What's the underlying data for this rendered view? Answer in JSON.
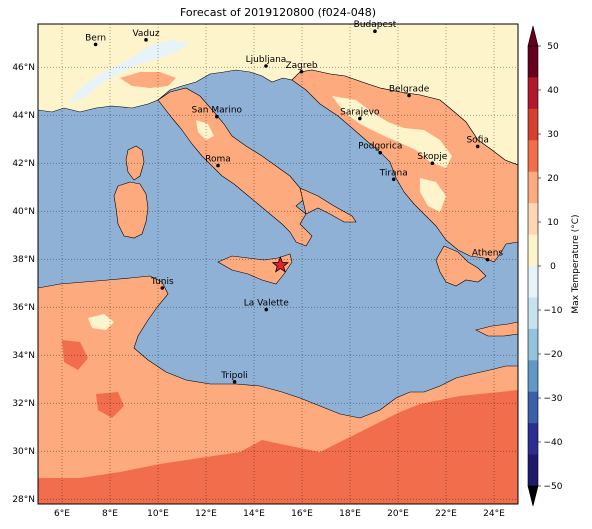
{
  "title": "Forecast of 2019120800 (f024-048)",
  "map": {
    "lon_range": [
      5,
      25
    ],
    "lat_range": [
      27.8,
      47.8
    ],
    "lon_ticks": [
      "6°E",
      "8°E",
      "10°E",
      "12°E",
      "14°E",
      "16°E",
      "18°E",
      "20°E",
      "22°E",
      "24°E"
    ],
    "lat_ticks": [
      "28°N",
      "30°N",
      "32°N",
      "34°N",
      "36°N",
      "38°N",
      "40°N",
      "42°N",
      "44°N",
      "46°N"
    ],
    "grid": true,
    "sea_color": "#8fb1d6",
    "land_colors": {
      "warm": "#fcaa7e",
      "hot": "#f26d4b",
      "mild": "#fef4cc",
      "cool": "#e6f4f9"
    },
    "cities": [
      {
        "name": "Bern",
        "lon": 7.4,
        "lat": 46.95
      },
      {
        "name": "Vaduz",
        "lon": 9.5,
        "lat": 47.14
      },
      {
        "name": "Budapest",
        "lon": 19.04,
        "lat": 47.5
      },
      {
        "name": "Ljubljana",
        "lon": 14.5,
        "lat": 46.05
      },
      {
        "name": "Zagreb",
        "lon": 15.98,
        "lat": 45.81
      },
      {
        "name": "Belgrade",
        "lon": 20.46,
        "lat": 44.82
      },
      {
        "name": "San Marino",
        "lon": 12.45,
        "lat": 43.94
      },
      {
        "name": "Sarajevo",
        "lon": 18.41,
        "lat": 43.86
      },
      {
        "name": "Sofia",
        "lon": 23.32,
        "lat": 42.7
      },
      {
        "name": "Podgorica",
        "lon": 19.26,
        "lat": 42.44
      },
      {
        "name": "Skopje",
        "lon": 21.43,
        "lat": 42.0
      },
      {
        "name": "Roma",
        "lon": 12.5,
        "lat": 41.9
      },
      {
        "name": "Tirana",
        "lon": 19.82,
        "lat": 41.33
      },
      {
        "name": "Athens",
        "lon": 23.73,
        "lat": 37.98
      },
      {
        "name": "Tunis",
        "lon": 10.18,
        "lat": 36.8
      },
      {
        "name": "La Valette",
        "lon": 14.51,
        "lat": 35.9
      },
      {
        "name": "Tripoli",
        "lon": 13.19,
        "lat": 32.89
      }
    ],
    "marker": {
      "lon": 15.1,
      "lat": 37.75,
      "color": "#e8202a"
    }
  },
  "colorbar": {
    "label": "Max Temperature (°C)",
    "ticks": [
      "50",
      "40",
      "30",
      "20",
      "10",
      "0",
      "−10",
      "−20",
      "−30",
      "−40",
      "−50"
    ],
    "colors": [
      "#67001f",
      "#b2182b",
      "#d6402e",
      "#f26d4b",
      "#fcaa7e",
      "#fdd6b3",
      "#fef4cc",
      "#e6f4f9",
      "#c5e3ef",
      "#93c4de",
      "#6298c6",
      "#3b5fa8",
      "#2c2f8f",
      "#1f1a6b"
    ]
  }
}
